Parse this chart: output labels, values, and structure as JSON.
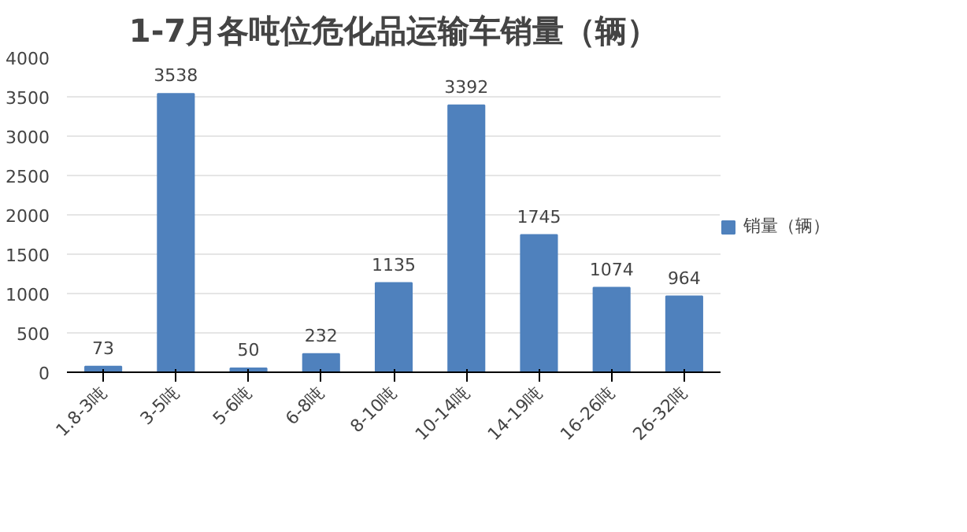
{
  "chart_data": {
    "type": "bar",
    "title": "1-7月各吨位危化品运输车销量（辆）",
    "categories": [
      "1.8-3吨",
      "3-5吨",
      "5-6吨",
      "6-8吨",
      "8-10吨",
      "10-14吨",
      "14-19吨",
      "16-26吨",
      "26-32吨"
    ],
    "series": [
      {
        "name": "销量（辆）",
        "color": "#4f81bd",
        "values": [
          73,
          3538,
          50,
          232,
          1135,
          3392,
          1745,
          1074,
          964
        ]
      }
    ],
    "ylim": [
      0,
      4000
    ],
    "yticks": [
      0,
      500,
      1000,
      1500,
      2000,
      2500,
      3000,
      3500,
      4000
    ],
    "grid": "y",
    "legend": "right",
    "data_labels": true
  }
}
